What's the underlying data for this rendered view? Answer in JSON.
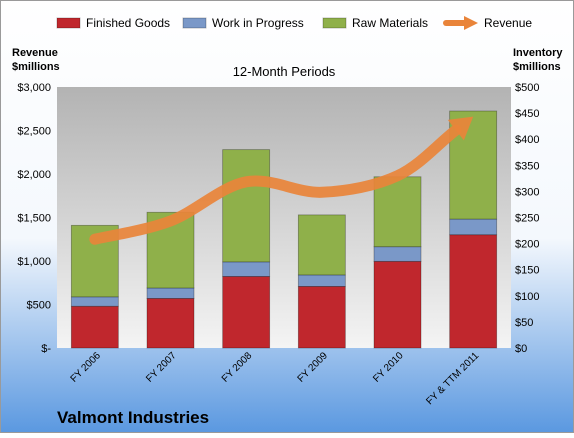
{
  "colors": {
    "finished": "#c0272d",
    "wip": "#7a98c8",
    "raw": "#8fb04a",
    "revenue": "#e9843a",
    "background_top": "#ffffff",
    "background_bottom": "#5a98e0",
    "plot_top": "#b3b3b3",
    "plot_bottom": "#f4f4f4"
  },
  "chart_data": {
    "type": "bar",
    "stacked": true,
    "title": "12-Month Periods",
    "company": "Valmont Industries",
    "categories": [
      "FY 2006",
      "FY 2007",
      "FY 2008",
      "FY 2009",
      "FY 2010",
      "FY & TTM 2011"
    ],
    "series": [
      {
        "name": "Finished Goods",
        "axis": "right",
        "values": [
          80,
          95,
          137,
          118,
          166,
          217
        ]
      },
      {
        "name": "Work in Progress",
        "axis": "right",
        "values": [
          18,
          20,
          28,
          22,
          28,
          30
        ]
      },
      {
        "name": "Raw Materials",
        "axis": "right",
        "values": [
          137,
          145,
          215,
          115,
          134,
          207
        ]
      },
      {
        "name": "Revenue",
        "type": "line",
        "axis": "left",
        "values": [
          1250,
          1460,
          1910,
          1790,
          1980,
          2660
        ]
      }
    ],
    "left_axis": {
      "label_line1": "Revenue",
      "label_line2": "$millions",
      "min": 0,
      "max": 3000,
      "step": 500,
      "tick_labels": [
        "$-",
        "$500",
        "$1,000",
        "$1,500",
        "$2,000",
        "$2,500",
        "$3,000"
      ]
    },
    "right_axis": {
      "label_line1": "Inventory",
      "label_line2": "$millions",
      "min": 0,
      "max": 500,
      "step": 50,
      "tick_labels": [
        "$0",
        "$50",
        "$100",
        "$150",
        "$200",
        "$250",
        "$300",
        "$350",
        "$400",
        "$450",
        "$500"
      ]
    },
    "legend_position": "top",
    "grid": false
  }
}
